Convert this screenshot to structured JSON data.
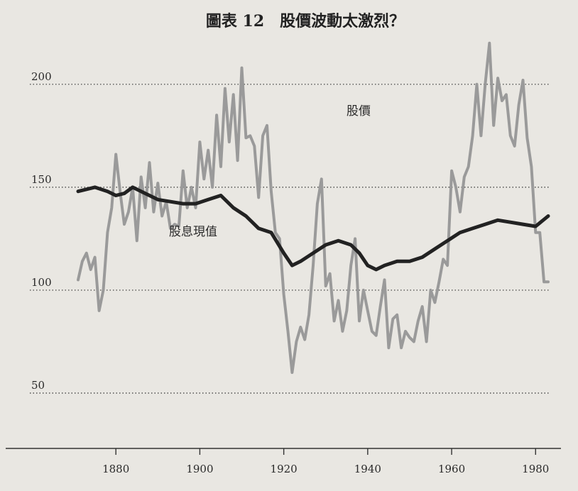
{
  "chart_data": {
    "type": "line",
    "title": "圖表 12　股價波動太激烈？",
    "xlim": [
      1871,
      1983
    ],
    "ylim": [
      30,
      222
    ],
    "y_ticks": [
      50,
      100,
      150,
      200
    ],
    "x_ticks": [
      1880,
      1900,
      1920,
      1940,
      1960,
      1980
    ],
    "grid": "dotted horizontal at y ticks",
    "series": [
      {
        "name": "股價",
        "color": "#9a9a9a",
        "x": [
          1871,
          1872,
          1873,
          1874,
          1875,
          1876,
          1877,
          1878,
          1879,
          1880,
          1881,
          1882,
          1883,
          1884,
          1885,
          1886,
          1887,
          1888,
          1889,
          1890,
          1891,
          1892,
          1893,
          1894,
          1895,
          1896,
          1897,
          1898,
          1899,
          1900,
          1901,
          1902,
          1903,
          1904,
          1905,
          1906,
          1907,
          1908,
          1909,
          1910,
          1911,
          1912,
          1913,
          1914,
          1915,
          1916,
          1917,
          1918,
          1919,
          1920,
          1921,
          1922,
          1923,
          1924,
          1925,
          1926,
          1927,
          1928,
          1929,
          1930,
          1931,
          1932,
          1933,
          1934,
          1935,
          1936,
          1937,
          1938,
          1939,
          1940,
          1941,
          1942,
          1943,
          1944,
          1945,
          1946,
          1947,
          1948,
          1949,
          1950,
          1951,
          1952,
          1953,
          1954,
          1955,
          1956,
          1957,
          1958,
          1959,
          1960,
          1961,
          1962,
          1963,
          1964,
          1965,
          1966,
          1967,
          1968,
          1969,
          1970,
          1971,
          1972,
          1973,
          1974,
          1975,
          1976,
          1977,
          1978,
          1979
        ],
        "values": [
          105,
          114,
          118,
          110,
          116,
          90,
          100,
          128,
          140,
          166,
          148,
          132,
          138,
          150,
          124,
          155,
          140,
          162,
          138,
          152,
          136,
          143,
          130,
          132,
          131,
          158,
          140,
          150,
          140,
          172,
          154,
          168,
          150,
          185,
          160,
          198,
          172,
          195,
          163,
          208,
          174,
          175,
          170,
          145,
          175,
          180,
          148,
          128,
          125,
          98,
          80,
          60,
          75,
          82,
          76,
          88,
          112,
          142,
          154,
          102,
          108,
          85,
          95,
          80,
          90,
          112,
          125,
          85,
          100,
          90,
          80,
          78,
          92,
          105,
          72,
          86,
          88,
          72,
          80,
          77,
          75,
          85,
          92,
          75,
          100,
          94,
          104,
          115,
          112,
          158,
          150,
          138,
          155,
          160,
          175,
          200,
          175,
          200,
          220,
          180,
          203,
          192,
          195,
          175,
          170,
          190,
          202,
          174,
          160
        ],
        "extra_points": [
          [
            1980,
            128
          ],
          [
            1981,
            128
          ],
          [
            1982,
            104
          ],
          [
            1983,
            104
          ]
        ]
      },
      {
        "name": "股息現值",
        "color": "#222222",
        "x": [
          1871,
          1875,
          1878,
          1880,
          1882,
          1884,
          1886,
          1888,
          1890,
          1893,
          1896,
          1899,
          1902,
          1905,
          1908,
          1911,
          1914,
          1917,
          1920,
          1922,
          1924,
          1927,
          1930,
          1933,
          1936,
          1938,
          1940,
          1942,
          1944,
          1947,
          1950,
          1953,
          1956,
          1959,
          1962,
          1965,
          1968,
          1971,
          1974,
          1977,
          1980,
          1983
        ],
        "values": [
          148,
          150,
          148,
          146,
          147,
          150,
          148,
          146,
          144,
          143,
          142,
          142,
          144,
          146,
          140,
          136,
          130,
          128,
          118,
          112,
          114,
          118,
          122,
          124,
          122,
          118,
          112,
          110,
          112,
          114,
          114,
          116,
          120,
          124,
          128,
          130,
          132,
          134,
          133,
          132,
          131,
          136
        ]
      }
    ]
  }
}
